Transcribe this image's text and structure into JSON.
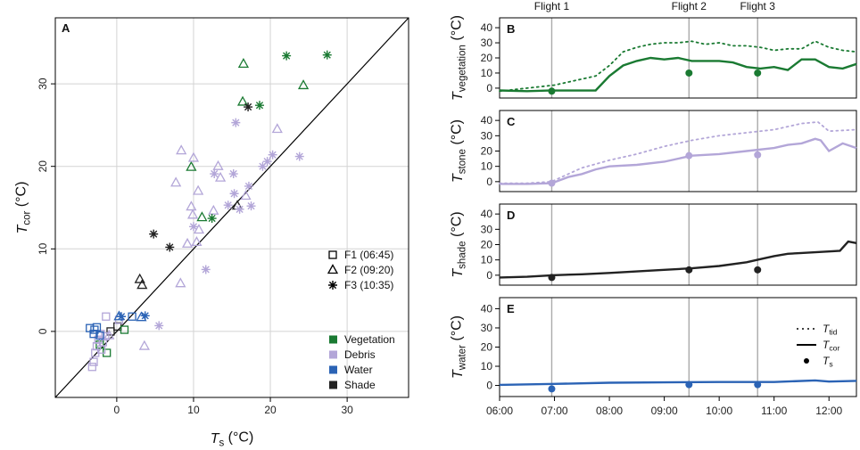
{
  "colors": {
    "vegetation": "#1a7a32",
    "debris": "#b3a6d8",
    "water": "#2b63b5",
    "shade": "#222222",
    "grid": "#d3d3d3",
    "diag": "#000000",
    "vline": "#aaaaaa"
  },
  "chart_data": [
    {
      "type": "scatter",
      "panel": "A",
      "xlabel": {
        "main": "T",
        "sub": "s",
        "unit": " (°C)"
      },
      "ylabel": {
        "main": "T",
        "sub": "cor",
        "unit": " (°C)"
      },
      "xlim": [
        -8,
        38
      ],
      "ylim": [
        -8,
        38
      ],
      "xticks": [
        0,
        10,
        20,
        30
      ],
      "yticks": [
        0,
        10,
        20,
        30
      ],
      "one_to_one_line": true,
      "legend_flights": [
        {
          "marker": "square",
          "label": "F1 (06:45)"
        },
        {
          "marker": "triangle",
          "label": "F2 (09:20)"
        },
        {
          "marker": "star",
          "label": "F3 (10:35)"
        }
      ],
      "legend_classes": [
        {
          "key": "vegetation",
          "label": "Vegetation"
        },
        {
          "key": "debris",
          "label": "Debris"
        },
        {
          "key": "water",
          "label": "Water"
        },
        {
          "key": "shade",
          "label": "Shade"
        }
      ],
      "points": [
        {
          "f": "square",
          "c": "shade",
          "x": -0.8,
          "y": 0.0
        },
        {
          "f": "square",
          "c": "shade",
          "x": 0.1,
          "y": 0.6
        },
        {
          "f": "square",
          "c": "vegetation",
          "x": 1.0,
          "y": 0.2
        },
        {
          "f": "square",
          "c": "vegetation",
          "x": -2.2,
          "y": -1.6
        },
        {
          "f": "square",
          "c": "vegetation",
          "x": -1.3,
          "y": -2.6
        },
        {
          "f": "square",
          "c": "debris",
          "x": -3.2,
          "y": -4.3
        },
        {
          "f": "square",
          "c": "debris",
          "x": -3.0,
          "y": -3.7
        },
        {
          "f": "square",
          "c": "debris",
          "x": -2.8,
          "y": -2.6
        },
        {
          "f": "square",
          "c": "debris",
          "x": -2.6,
          "y": -1.8
        },
        {
          "f": "square",
          "c": "debris",
          "x": -2.4,
          "y": -1.0
        },
        {
          "f": "square",
          "c": "debris",
          "x": -2.1,
          "y": -0.3
        },
        {
          "f": "square",
          "c": "debris",
          "x": -1.8,
          "y": -1.3
        },
        {
          "f": "square",
          "c": "debris",
          "x": -1.5,
          "y": -0.6
        },
        {
          "f": "square",
          "c": "debris",
          "x": -1.4,
          "y": 1.8
        },
        {
          "f": "square",
          "c": "debris",
          "x": 0.3,
          "y": 1.4
        },
        {
          "f": "square",
          "c": "debris",
          "x": -2.0,
          "y": -2.2
        },
        {
          "f": "square",
          "c": "water",
          "x": -3.5,
          "y": 0.4
        },
        {
          "f": "square",
          "c": "water",
          "x": -2.9,
          "y": 0.2
        },
        {
          "f": "square",
          "c": "water",
          "x": -2.6,
          "y": 0.5
        },
        {
          "f": "square",
          "c": "water",
          "x": -2.2,
          "y": -0.5
        },
        {
          "f": "square",
          "c": "water",
          "x": 2.0,
          "y": 1.8
        },
        {
          "f": "square",
          "c": "water",
          "x": -3.0,
          "y": -0.3
        },
        {
          "f": "triangle",
          "c": "vegetation",
          "x": 16.5,
          "y": 32.4
        },
        {
          "f": "triangle",
          "c": "vegetation",
          "x": 24.3,
          "y": 29.8
        },
        {
          "f": "triangle",
          "c": "vegetation",
          "x": 16.4,
          "y": 27.8
        },
        {
          "f": "triangle",
          "c": "vegetation",
          "x": 9.7,
          "y": 19.9
        },
        {
          "f": "triangle",
          "c": "vegetation",
          "x": 11.1,
          "y": 13.8
        },
        {
          "f": "triangle",
          "c": "shade",
          "x": 3.0,
          "y": 6.3
        },
        {
          "f": "triangle",
          "c": "shade",
          "x": 3.3,
          "y": 5.6
        },
        {
          "f": "triangle",
          "c": "shade",
          "x": 15.7,
          "y": 15.2
        },
        {
          "f": "triangle",
          "c": "water",
          "x": 0.3,
          "y": 1.8
        },
        {
          "f": "triangle",
          "c": "water",
          "x": 3.2,
          "y": 1.7
        },
        {
          "f": "triangle",
          "c": "debris",
          "x": 8.4,
          "y": 21.9
        },
        {
          "f": "triangle",
          "c": "debris",
          "x": 10.0,
          "y": 21.0
        },
        {
          "f": "triangle",
          "c": "debris",
          "x": 7.7,
          "y": 18.0
        },
        {
          "f": "triangle",
          "c": "debris",
          "x": 13.2,
          "y": 20.0
        },
        {
          "f": "triangle",
          "c": "debris",
          "x": 10.6,
          "y": 17.0
        },
        {
          "f": "triangle",
          "c": "debris",
          "x": 9.7,
          "y": 15.1
        },
        {
          "f": "triangle",
          "c": "debris",
          "x": 9.9,
          "y": 14.1
        },
        {
          "f": "triangle",
          "c": "debris",
          "x": 10.7,
          "y": 12.3
        },
        {
          "f": "triangle",
          "c": "debris",
          "x": 12.6,
          "y": 14.6
        },
        {
          "f": "triangle",
          "c": "debris",
          "x": 13.5,
          "y": 18.6
        },
        {
          "f": "triangle",
          "c": "debris",
          "x": 9.2,
          "y": 10.6
        },
        {
          "f": "triangle",
          "c": "debris",
          "x": 10.4,
          "y": 10.8
        },
        {
          "f": "triangle",
          "c": "debris",
          "x": 8.3,
          "y": 5.8
        },
        {
          "f": "triangle",
          "c": "debris",
          "x": 20.9,
          "y": 24.5
        },
        {
          "f": "triangle",
          "c": "debris",
          "x": 16.8,
          "y": 16.4
        },
        {
          "f": "triangle",
          "c": "debris",
          "x": 3.6,
          "y": -1.8
        },
        {
          "f": "triangle",
          "c": "debris",
          "x": -1.0,
          "y": -0.5
        },
        {
          "f": "star",
          "c": "vegetation",
          "x": 22.1,
          "y": 33.4
        },
        {
          "f": "star",
          "c": "vegetation",
          "x": 27.4,
          "y": 33.5
        },
        {
          "f": "star",
          "c": "vegetation",
          "x": 18.6,
          "y": 27.4
        },
        {
          "f": "star",
          "c": "vegetation",
          "x": 12.4,
          "y": 13.7
        },
        {
          "f": "star",
          "c": "shade",
          "x": 17.1,
          "y": 27.2
        },
        {
          "f": "star",
          "c": "shade",
          "x": 4.8,
          "y": 11.8
        },
        {
          "f": "star",
          "c": "shade",
          "x": 6.9,
          "y": 10.2
        },
        {
          "f": "star",
          "c": "water",
          "x": 0.6,
          "y": 1.8
        },
        {
          "f": "star",
          "c": "water",
          "x": 3.7,
          "y": 1.9
        },
        {
          "f": "star",
          "c": "debris",
          "x": 15.5,
          "y": 25.3
        },
        {
          "f": "star",
          "c": "debris",
          "x": 20.3,
          "y": 21.4
        },
        {
          "f": "star",
          "c": "debris",
          "x": 23.8,
          "y": 21.2
        },
        {
          "f": "star",
          "c": "debris",
          "x": 19.6,
          "y": 20.6
        },
        {
          "f": "star",
          "c": "debris",
          "x": 19.0,
          "y": 20.0
        },
        {
          "f": "star",
          "c": "debris",
          "x": 12.7,
          "y": 19.1
        },
        {
          "f": "star",
          "c": "debris",
          "x": 15.2,
          "y": 19.1
        },
        {
          "f": "star",
          "c": "debris",
          "x": 17.2,
          "y": 17.6
        },
        {
          "f": "star",
          "c": "debris",
          "x": 15.3,
          "y": 16.7
        },
        {
          "f": "star",
          "c": "debris",
          "x": 14.5,
          "y": 15.3
        },
        {
          "f": "star",
          "c": "debris",
          "x": 16.0,
          "y": 14.8
        },
        {
          "f": "star",
          "c": "debris",
          "x": 17.5,
          "y": 15.2
        },
        {
          "f": "star",
          "c": "debris",
          "x": 10.0,
          "y": 12.7
        },
        {
          "f": "star",
          "c": "debris",
          "x": 11.6,
          "y": 7.5
        },
        {
          "f": "star",
          "c": "debris",
          "x": 5.5,
          "y": 0.7
        }
      ]
    },
    {
      "type": "line",
      "panel": "B",
      "color_key": "vegetation",
      "ylabel": {
        "main": "T",
        "sub": "vegetation",
        "unit": " (°C)"
      },
      "ylim": [
        -3,
        43
      ],
      "yticks": [
        0,
        10,
        20,
        30,
        40
      ],
      "tid": {
        "x": [
          6,
          6.5,
          7,
          7.25,
          7.5,
          7.75,
          8,
          8.25,
          8.5,
          8.75,
          9,
          9.25,
          9.5,
          9.75,
          10,
          10.25,
          10.5,
          10.75,
          11,
          11.25,
          11.5,
          11.75,
          12,
          12.25,
          12.5
        ],
        "y": [
          -2,
          0,
          2,
          4,
          6,
          8,
          15,
          24,
          27,
          29,
          30,
          30,
          31,
          29,
          30,
          28,
          28,
          27,
          25,
          26,
          26,
          31,
          27,
          25,
          24
        ]
      },
      "cor": {
        "x": [
          6,
          6.5,
          6.9,
          7.5,
          7.75,
          8,
          8.25,
          8.5,
          8.75,
          9,
          9.25,
          9.5,
          9.75,
          10,
          10.25,
          10.5,
          10.75,
          11,
          11.25,
          11.5,
          11.75,
          12,
          12.25,
          12.5
        ],
        "y": [
          -1.5,
          -2,
          -1.6,
          -1.6,
          -1.5,
          8,
          15,
          18,
          20,
          19,
          20,
          18,
          18,
          18,
          17,
          14,
          13,
          14,
          12,
          19,
          19,
          14,
          13,
          16
        ]
      },
      "ts": {
        "x": [
          6.95,
          9.45,
          10.7
        ],
        "y": [
          -2,
          10,
          10
        ]
      }
    },
    {
      "type": "line",
      "panel": "C",
      "color_key": "debris",
      "ylabel": {
        "main": "T",
        "sub": "stone",
        "unit": " (°C)"
      },
      "ylim": [
        -3,
        43
      ],
      "yticks": [
        0,
        10,
        20,
        30,
        40
      ],
      "tid": {
        "x": [
          6,
          6.5,
          6.95,
          7.25,
          7.5,
          8,
          8.5,
          9,
          9.5,
          10,
          10.5,
          11,
          11.5,
          11.8,
          12,
          12.5
        ],
        "y": [
          -1,
          -1,
          0,
          5,
          9,
          14,
          18,
          23,
          27,
          30,
          32,
          34,
          38,
          39,
          33,
          34
        ]
      },
      "cor": {
        "x": [
          6,
          6.5,
          6.95,
          7.25,
          7.5,
          7.75,
          8,
          8.5,
          9,
          9.5,
          10,
          10.5,
          11,
          11.25,
          11.5,
          11.75,
          11.85,
          12,
          12.25,
          12.5
        ],
        "y": [
          -1.5,
          -1.5,
          -1,
          3,
          5,
          8,
          10,
          11,
          13,
          17,
          18,
          20,
          22,
          24,
          25,
          28,
          27,
          20,
          25,
          22
        ]
      },
      "ts": {
        "x": [
          6.95,
          9.45,
          10.7
        ],
        "y": [
          -1,
          17,
          17.5
        ]
      }
    },
    {
      "type": "line",
      "panel": "D",
      "color_key": "shade",
      "ylabel": {
        "main": "T",
        "sub": "shade",
        "unit": " (°C)"
      },
      "ylim": [
        -3,
        43
      ],
      "yticks": [
        0,
        10,
        20,
        30,
        40
      ],
      "cor": {
        "x": [
          6,
          6.5,
          7,
          7.5,
          8,
          8.5,
          9,
          9.5,
          10,
          10.5,
          10.75,
          11,
          11.25,
          11.5,
          11.75,
          12,
          12.2,
          12.35,
          12.5
        ],
        "y": [
          -1.5,
          -1,
          0,
          0.6,
          1.5,
          2.5,
          3.5,
          4.5,
          6,
          8.5,
          10.5,
          12.5,
          14,
          14.5,
          15,
          15.5,
          16,
          22,
          21
        ]
      },
      "ts": {
        "x": [
          6.95,
          9.45,
          10.7
        ],
        "y": [
          -1.5,
          3.5,
          3.5
        ]
      }
    },
    {
      "type": "line",
      "panel": "E",
      "color_key": "water",
      "ylabel": {
        "main": "T",
        "sub": "water",
        "unit": " (°C)"
      },
      "ylim": [
        -3,
        43
      ],
      "yticks": [
        0,
        10,
        20,
        30,
        40
      ],
      "cor": {
        "x": [
          6,
          7,
          8,
          9,
          10,
          11,
          11.75,
          12,
          12.5
        ],
        "y": [
          0.3,
          0.8,
          1.4,
          1.6,
          1.8,
          1.8,
          2.6,
          2.0,
          2.4
        ]
      },
      "ts": {
        "x": [
          6.95,
          9.45,
          10.7
        ],
        "y": [
          -1.8,
          0.4,
          0.4
        ]
      },
      "legend": [
        {
          "style": "dotted",
          "main": "T",
          "sub": "tid"
        },
        {
          "style": "solid",
          "main": "T",
          "sub": "cor"
        },
        {
          "style": "dot",
          "main": "T",
          "sub": "s"
        }
      ]
    }
  ],
  "time_axis": {
    "xlim": [
      6,
      12.5
    ],
    "ticks": [
      6,
      7,
      8,
      9,
      10,
      11,
      12
    ],
    "tick_labels": [
      "06:00",
      "07:00",
      "08:00",
      "09:00",
      "10:00",
      "11:00",
      "12:00"
    ]
  },
  "flights": [
    {
      "label": "Flight 1",
      "t": 6.95
    },
    {
      "label": "Flight 2",
      "t": 9.45
    },
    {
      "label": "Flight 3",
      "t": 10.7
    }
  ]
}
